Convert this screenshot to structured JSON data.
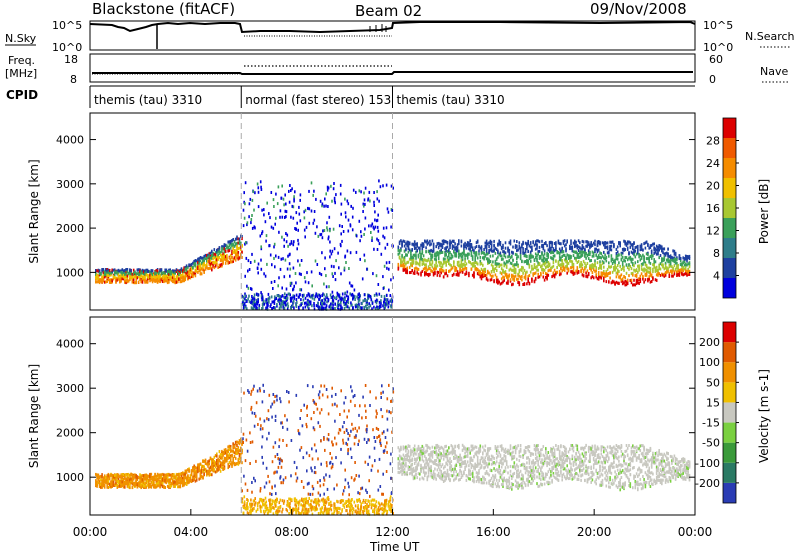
{
  "header": {
    "station": "Blackstone (fitACF)",
    "beam": "Beam 02",
    "date": "09/Nov/2008"
  },
  "nsky_panel": {
    "left_label": "N.Sky",
    "right_label": "N.Search",
    "left_ticks": [
      "10^5",
      "10^0"
    ],
    "right_ticks": [
      "10^5",
      "10^0"
    ]
  },
  "freq_panel": {
    "left_label_line1": "Freq.",
    "left_label_line2": "[MHz]",
    "left_ticks": [
      "18",
      "8"
    ],
    "right_label": "Nave",
    "right_ticks": [
      "60",
      "0"
    ]
  },
  "cpid_panel": {
    "label": "CPID",
    "segments": [
      {
        "name": "themis (tau) 3310",
        "start": 0,
        "end": 6
      },
      {
        "name": "normal (fast stereo) 153",
        "start": 6,
        "end": 12
      },
      {
        "name": "themis (tau) 3310",
        "start": 12,
        "end": 24
      }
    ]
  },
  "chart_data": [
    {
      "type": "heatmap",
      "name": "power",
      "ylabel": "Slant Range [km]",
      "ylim": [
        150,
        4600
      ],
      "yticks": [
        "4000",
        "3000",
        "2000",
        "1000"
      ],
      "colorbar_label": "Power [dB]",
      "colorbar_ticks": [
        "28",
        "24",
        "20",
        "16",
        "12",
        "8",
        "4"
      ],
      "colors": [
        "#0000dd",
        "#1e40a0",
        "#2e7d8a",
        "#3aa05a",
        "#a8c832",
        "#f0c000",
        "#f58c00",
        "#f05a00",
        "#dc0000"
      ]
    },
    {
      "type": "heatmap",
      "name": "velocity",
      "ylabel": "Slant Range [km]",
      "ylim": [
        150,
        4600
      ],
      "yticks": [
        "4000",
        "3000",
        "2000",
        "1000"
      ],
      "colorbar_label": "Velocity [m s-1]",
      "colorbar_ticks": [
        "200",
        "100",
        "50",
        "15",
        "-15",
        "-50",
        "-100",
        "-200"
      ],
      "colors": [
        "#2a3cb4",
        "#2a7a64",
        "#3a9a3a",
        "#7ad040",
        "#c8c8c0",
        "#f0c000",
        "#f09000",
        "#e05a00",
        "#dc0000"
      ]
    }
  ],
  "x_axis": {
    "label": "Time UT",
    "xlim": [
      0,
      24
    ],
    "ticks": [
      "00:00",
      "04:00",
      "08:00",
      "12:00",
      "16:00",
      "20:00",
      "00:00"
    ]
  }
}
